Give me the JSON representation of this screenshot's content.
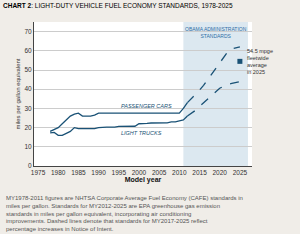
{
  "chart_data": {
    "type": "line",
    "title": "CHART 2: LIGHT-DUTY VEHICLE FUEL ECONOMY STANDARDS, 1978-2025",
    "xlabel": "Model year",
    "ylabel": "miles per gallon equivalent",
    "xlim": [
      1974,
      2028
    ],
    "ylim": [
      0,
      75
    ],
    "xticks": [
      1975,
      1980,
      1985,
      1990,
      1995,
      2000,
      2005,
      2010,
      2015,
      2020,
      2025
    ],
    "yticks": [
      0,
      10,
      20,
      30,
      40,
      50,
      60,
      70
    ],
    "grid": "y",
    "bg_color": "#f0ede8",
    "plot_bg": "#ffffff",
    "series": [
      {
        "name": "PASSENGER CARS",
        "color": "#1a5276",
        "line_style": "solid",
        "x": [
          1978,
          1979,
          1980,
          1981,
          1982,
          1983,
          1984,
          1985,
          1986,
          1987,
          1988,
          1989,
          1990,
          1991,
          1992,
          1993,
          1994,
          1995,
          1996,
          1997,
          1998,
          1999,
          2000,
          2001,
          2002,
          2003,
          2004,
          2005,
          2006,
          2007,
          2008,
          2009,
          2010,
          2011,
          2012
        ],
        "values": [
          18.0,
          19.0,
          20.0,
          22.0,
          24.0,
          26.0,
          27.0,
          27.5,
          26.0,
          26.0,
          26.0,
          26.5,
          27.5,
          27.5,
          27.5,
          27.5,
          27.5,
          27.5,
          27.5,
          27.5,
          27.5,
          27.5,
          27.5,
          27.5,
          27.5,
          27.5,
          27.5,
          27.5,
          27.5,
          27.5,
          27.5,
          27.5,
          27.5,
          30.0,
          33.0
        ]
      },
      {
        "name": "PASSENGER CARS",
        "color": "#1a5276",
        "line_style": "dashed",
        "x": [
          2012,
          2013,
          2014,
          2015,
          2016,
          2017,
          2018,
          2019,
          2020,
          2021,
          2022,
          2023,
          2024,
          2025
        ],
        "values": [
          33.0,
          35.0,
          37.0,
          39.5,
          42.0,
          45.0,
          48.0,
          51.0,
          54.0,
          57.0,
          59.5,
          61.0,
          61.5,
          62.0
        ]
      },
      {
        "name": "LIGHT TRUCKS",
        "color": "#1a5276",
        "line_style": "solid",
        "x": [
          1978,
          1979,
          1980,
          1981,
          1982,
          1983,
          1984,
          1985,
          1986,
          1987,
          1988,
          1989,
          1990,
          1991,
          1992,
          1993,
          1994,
          1995,
          1996,
          1997,
          1998,
          1999,
          2000,
          2001,
          2002,
          2003,
          2004,
          2005,
          2006,
          2007,
          2008,
          2009,
          2010,
          2011,
          2012
        ],
        "values": [
          17.2,
          17.5,
          16.0,
          16.0,
          17.0,
          18.0,
          20.0,
          19.5,
          19.5,
          19.5,
          19.5,
          19.5,
          20.0,
          20.2,
          20.2,
          20.2,
          20.2,
          20.6,
          20.7,
          20.7,
          20.7,
          20.7,
          22.0,
          22.0,
          22.2,
          22.4,
          22.4,
          22.4,
          22.4,
          22.5,
          23.0,
          23.0,
          23.5,
          24.0,
          26.0
        ]
      },
      {
        "name": "LIGHT TRUCKS",
        "color": "#1a5276",
        "line_style": "dashed",
        "x": [
          2012,
          2013,
          2014,
          2015,
          2016,
          2017,
          2018,
          2019,
          2020,
          2021,
          2022,
          2023,
          2024,
          2025
        ],
        "values": [
          26.0,
          27.5,
          29.0,
          31.0,
          33.0,
          35.0,
          37.0,
          39.0,
          40.5,
          41.5,
          42.5,
          43.0,
          43.5,
          44.0
        ]
      },
      {
        "type": "scatter",
        "marker": "square",
        "color": "#1a5276",
        "x": [
          2025
        ],
        "values": [
          54.5
        ],
        "annotation": "54.5 mpge\nfleetwide\naverage\nin 2025"
      }
    ],
    "spans": [
      {
        "start": 2011,
        "end": 2027,
        "color": "#dce8f0",
        "label": "OBAMA ADMINISTRATION\nSTANDARDS",
        "label_color": "#2e6ea6"
      }
    ],
    "footnote": "MY1978-2011 figures are NHTSA Corporate Average Fuel Economy (CAFE) standards in miles per gallon.  Standards for MY2012-2025 are EPA greenhouse gas emission standards in miles per gallon equivalent, incorporating air conditioning improvements.  Dashed lines denote that standards for MY2017-2025 reflect percentage increases in Notice of Intent."
  }
}
